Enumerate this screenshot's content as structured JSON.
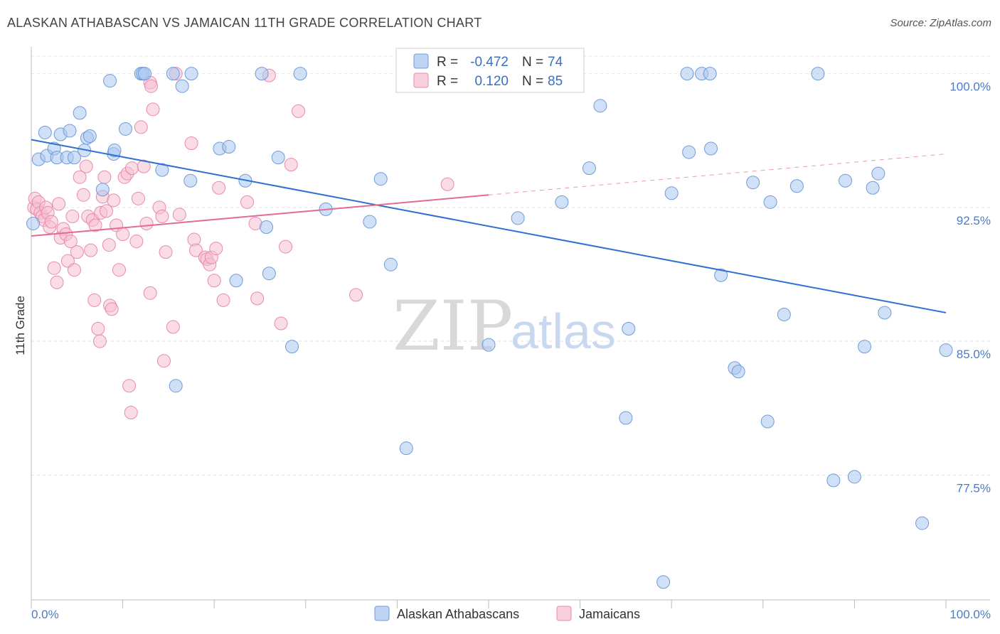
{
  "header": {
    "title": "ALASKAN ATHABASCAN VS JAMAICAN 11TH GRADE CORRELATION CHART",
    "source": "Source: ZipAtlas.com"
  },
  "watermark": {
    "zip": "ZIP",
    "atlas": "atlas"
  },
  "legend": {
    "rows": [
      {
        "r_label": "R =",
        "r_value": "-0.472",
        "n_label": "N =",
        "n_value": "74"
      },
      {
        "r_label": "R =",
        "r_value": "0.120",
        "n_label": "N =",
        "n_value": "85"
      }
    ]
  },
  "colors": {
    "blue_fill": "#a9c6ef",
    "blue_stroke": "#6f9bd8",
    "blue_line": "#2f6fd0",
    "pink_fill": "#f6bfd1",
    "pink_stroke": "#e98aab",
    "pink_line": "#e06c96"
  },
  "chart_data": {
    "type": "scatter",
    "title": "ALASKAN ATHABASCAN VS JAMAICAN 11TH GRADE CORRELATION CHART",
    "ylabel": "11th Grade",
    "xlabel": "",
    "xlim": [
      0,
      100
    ],
    "ylim": [
      70.5,
      101.5
    ],
    "x_tick_labels": [
      {
        "value": 0,
        "label": "0.0%"
      },
      {
        "value": 100,
        "label": "100.0%"
      }
    ],
    "y_ticks": [
      {
        "value": 100,
        "label": "100.0%"
      },
      {
        "value": 92.5,
        "label": "92.5%"
      },
      {
        "value": 85,
        "label": "85.0%"
      },
      {
        "value": 77.5,
        "label": "77.5%"
      }
    ],
    "grid": true,
    "legend_position": "top-center",
    "series": [
      {
        "name": "Alaskan Athabascans",
        "r": -0.472,
        "n": 74,
        "trend": {
          "x0": 0,
          "y0": 96.3,
          "x1": 100,
          "y1": 86.6
        },
        "points": [
          [
            0.2,
            91.6
          ],
          [
            0.8,
            95.2
          ],
          [
            1.5,
            96.7
          ],
          [
            1.7,
            95.4
          ],
          [
            2.5,
            95.8
          ],
          [
            2.8,
            95.3
          ],
          [
            3.2,
            96.6
          ],
          [
            3.9,
            95.3
          ],
          [
            4.2,
            96.8
          ],
          [
            4.7,
            95.3
          ],
          [
            5.3,
            97.8
          ],
          [
            5.8,
            95.7
          ],
          [
            6.1,
            96.4
          ],
          [
            6.4,
            96.5
          ],
          [
            7.8,
            93.5
          ],
          [
            8.6,
            99.6
          ],
          [
            9.0,
            95.5
          ],
          [
            9.1,
            95.7
          ],
          [
            10.3,
            96.9
          ],
          [
            12.0,
            100.0
          ],
          [
            12.2,
            100.0
          ],
          [
            12.4,
            100.0
          ],
          [
            14.3,
            94.6
          ],
          [
            15.5,
            100.0
          ],
          [
            15.8,
            82.5
          ],
          [
            16.5,
            99.3
          ],
          [
            17.5,
            100.0
          ],
          [
            17.4,
            94.0
          ],
          [
            20.6,
            95.8
          ],
          [
            21.6,
            95.9
          ],
          [
            22.4,
            88.4
          ],
          [
            23.4,
            94.0
          ],
          [
            25.2,
            100.0
          ],
          [
            25.7,
            91.4
          ],
          [
            26.0,
            88.8
          ],
          [
            27.0,
            95.3
          ],
          [
            28.5,
            84.7
          ],
          [
            29.4,
            100.0
          ],
          [
            32.2,
            92.4
          ],
          [
            37.0,
            91.7
          ],
          [
            38.2,
            94.1
          ],
          [
            39.3,
            89.3
          ],
          [
            41.0,
            79.0
          ],
          [
            50.0,
            84.8
          ],
          [
            53.2,
            91.9
          ],
          [
            58.0,
            92.8
          ],
          [
            61.0,
            94.7
          ],
          [
            62.2,
            98.2
          ],
          [
            65.0,
            80.7
          ],
          [
            65.3,
            85.7
          ],
          [
            69.1,
            71.5
          ],
          [
            70.0,
            93.3
          ],
          [
            71.7,
            100.0
          ],
          [
            71.9,
            95.6
          ],
          [
            73.3,
            100.0
          ],
          [
            74.2,
            100.0
          ],
          [
            74.3,
            95.8
          ],
          [
            75.4,
            88.7
          ],
          [
            76.9,
            83.5
          ],
          [
            77.3,
            83.3
          ],
          [
            78.9,
            93.9
          ],
          [
            80.5,
            80.5
          ],
          [
            80.8,
            92.8
          ],
          [
            82.3,
            86.5
          ],
          [
            83.7,
            93.7
          ],
          [
            86.0,
            100.0
          ],
          [
            87.7,
            77.2
          ],
          [
            89.0,
            94.0
          ],
          [
            90.0,
            77.4
          ],
          [
            91.1,
            84.7
          ],
          [
            92.0,
            93.6
          ],
          [
            92.6,
            94.4
          ],
          [
            93.3,
            86.6
          ],
          [
            97.4,
            74.8
          ],
          [
            100.0,
            84.5
          ]
        ]
      },
      {
        "name": "Jamaicans",
        "r": 0.12,
        "n": 85,
        "trend": {
          "x0": 0,
          "y0": 90.9,
          "x1": 50,
          "y1": 93.2,
          "dashed_to": {
            "x": 100,
            "y": 95.5
          }
        },
        "points": [
          [
            0.3,
            92.5
          ],
          [
            0.4,
            93.0
          ],
          [
            0.6,
            92.4
          ],
          [
            0.8,
            92.8
          ],
          [
            1.0,
            92.2
          ],
          [
            1.2,
            92.0
          ],
          [
            1.4,
            91.8
          ],
          [
            1.6,
            92.5
          ],
          [
            1.8,
            92.2
          ],
          [
            2.0,
            91.4
          ],
          [
            2.2,
            91.7
          ],
          [
            2.5,
            89.1
          ],
          [
            2.8,
            88.3
          ],
          [
            3.0,
            92.7
          ],
          [
            3.2,
            90.8
          ],
          [
            3.5,
            91.3
          ],
          [
            3.8,
            91.0
          ],
          [
            4.0,
            89.5
          ],
          [
            4.3,
            90.6
          ],
          [
            4.5,
            92.0
          ],
          [
            4.7,
            89.0
          ],
          [
            5.0,
            90.0
          ],
          [
            5.3,
            94.2
          ],
          [
            5.7,
            93.2
          ],
          [
            6.0,
            94.8
          ],
          [
            6.2,
            92.0
          ],
          [
            6.5,
            90.1
          ],
          [
            6.7,
            91.8
          ],
          [
            6.9,
            87.3
          ],
          [
            7.0,
            91.5
          ],
          [
            7.3,
            85.7
          ],
          [
            7.5,
            85.0
          ],
          [
            7.6,
            92.2
          ],
          [
            7.8,
            93.1
          ],
          [
            8.0,
            94.2
          ],
          [
            8.2,
            92.3
          ],
          [
            8.5,
            90.4
          ],
          [
            8.6,
            87.0
          ],
          [
            8.8,
            86.8
          ],
          [
            9.0,
            92.9
          ],
          [
            9.3,
            91.5
          ],
          [
            9.6,
            89.0
          ],
          [
            10.0,
            91.0
          ],
          [
            10.2,
            94.2
          ],
          [
            10.5,
            94.4
          ],
          [
            10.7,
            82.5
          ],
          [
            10.9,
            81.0
          ],
          [
            11.0,
            94.7
          ],
          [
            11.5,
            90.6
          ],
          [
            11.7,
            93.0
          ],
          [
            12.0,
            97.0
          ],
          [
            12.3,
            94.8
          ],
          [
            12.6,
            91.6
          ],
          [
            13.0,
            87.7
          ],
          [
            13.0,
            99.5
          ],
          [
            13.1,
            99.3
          ],
          [
            13.3,
            98.0
          ],
          [
            14.0,
            92.5
          ],
          [
            14.3,
            92.0
          ],
          [
            14.5,
            83.9
          ],
          [
            14.7,
            90.0
          ],
          [
            15.5,
            85.8
          ],
          [
            15.8,
            100.0
          ],
          [
            16.2,
            92.1
          ],
          [
            17.5,
            96.1
          ],
          [
            17.8,
            90.7
          ],
          [
            18.0,
            90.1
          ],
          [
            19.0,
            89.7
          ],
          [
            19.2,
            89.6
          ],
          [
            19.5,
            89.3
          ],
          [
            19.7,
            89.7
          ],
          [
            20.0,
            88.4
          ],
          [
            20.2,
            90.2
          ],
          [
            20.5,
            93.6
          ],
          [
            21.0,
            87.3
          ],
          [
            23.6,
            92.8
          ],
          [
            24.5,
            91.6
          ],
          [
            24.7,
            87.4
          ],
          [
            26.0,
            99.9
          ],
          [
            27.3,
            86.0
          ],
          [
            27.8,
            90.3
          ],
          [
            28.4,
            94.9
          ],
          [
            29.2,
            97.9
          ],
          [
            35.5,
            87.6
          ],
          [
            45.5,
            93.8
          ]
        ]
      }
    ]
  },
  "bottom_legend": [
    {
      "label": "Alaskan Athabascans"
    },
    {
      "label": "Jamaicans"
    }
  ]
}
